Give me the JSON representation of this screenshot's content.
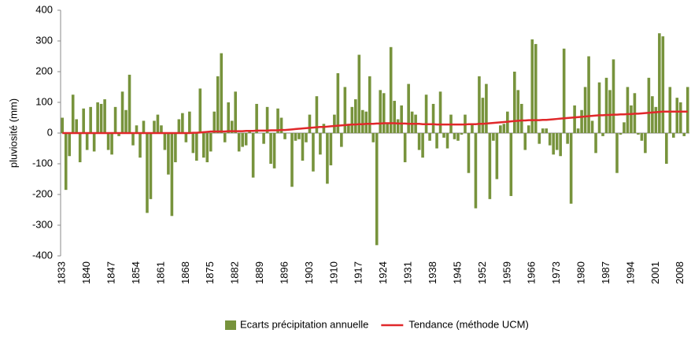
{
  "chart_data": {
    "type": "bar",
    "y_label": "pluviosité (mm)",
    "categories": [
      "1833",
      null,
      null,
      null,
      null,
      null,
      null,
      "1840",
      null,
      null,
      null,
      null,
      null,
      null,
      "1847",
      null,
      null,
      null,
      null,
      null,
      null,
      "1854",
      null,
      null,
      null,
      null,
      null,
      null,
      "1861",
      null,
      null,
      null,
      null,
      null,
      null,
      "1868",
      null,
      null,
      null,
      null,
      null,
      null,
      "1875",
      null,
      null,
      null,
      null,
      null,
      null,
      "1882",
      null,
      null,
      null,
      null,
      null,
      null,
      "1889",
      null,
      null,
      null,
      null,
      null,
      null,
      "1896",
      null,
      null,
      null,
      null,
      null,
      null,
      "1903",
      null,
      null,
      null,
      null,
      null,
      null,
      "1910",
      null,
      null,
      null,
      null,
      null,
      null,
      "1917",
      null,
      null,
      null,
      null,
      null,
      null,
      "1924",
      null,
      null,
      null,
      null,
      null,
      null,
      "1931",
      null,
      null,
      null,
      null,
      null,
      null,
      "1938",
      null,
      null,
      null,
      null,
      null,
      null,
      "1945",
      null,
      null,
      null,
      null,
      null,
      null,
      "1952",
      null,
      null,
      null,
      null,
      null,
      null,
      "1959",
      null,
      null,
      null,
      null,
      null,
      null,
      "1966",
      null,
      null,
      null,
      null,
      null,
      null,
      "1973",
      null,
      null,
      null,
      null,
      null,
      null,
      "1980",
      null,
      null,
      null,
      null,
      null,
      null,
      "1987",
      null,
      null,
      null,
      null,
      null,
      null,
      "1994",
      null,
      null,
      null,
      null,
      null,
      null,
      "2001",
      null,
      null,
      null,
      null,
      null,
      null,
      "2008",
      null,
      null
    ],
    "series": [
      {
        "name": "Ecarts précipitation annuelle",
        "type": "bar",
        "color": "#77933c",
        "values": [
          50,
          -185,
          -75,
          125,
          45,
          -95,
          80,
          -55,
          85,
          -60,
          100,
          95,
          110,
          -55,
          -70,
          85,
          -10,
          135,
          75,
          190,
          -40,
          25,
          -80,
          40,
          -260,
          -215,
          40,
          60,
          25,
          -55,
          -135,
          -270,
          -95,
          45,
          65,
          -30,
          70,
          -65,
          -90,
          145,
          -80,
          -95,
          -60,
          70,
          185,
          260,
          -30,
          100,
          40,
          135,
          -60,
          -45,
          -40,
          10,
          -145,
          95,
          0,
          -35,
          85,
          -100,
          -115,
          80,
          50,
          -20,
          0,
          -175,
          -25,
          -20,
          -90,
          -30,
          60,
          -125,
          120,
          -70,
          30,
          -165,
          -105,
          60,
          195,
          -45,
          150,
          30,
          85,
          110,
          255,
          75,
          70,
          185,
          -30,
          -365,
          140,
          130,
          30,
          280,
          105,
          45,
          90,
          -95,
          160,
          70,
          60,
          -55,
          -80,
          125,
          -25,
          95,
          -50,
          135,
          -15,
          -50,
          60,
          -20,
          -25,
          -5,
          60,
          -130,
          30,
          -245,
          185,
          115,
          160,
          -215,
          -25,
          -150,
          25,
          30,
          70,
          -205,
          200,
          140,
          95,
          -55,
          25,
          305,
          290,
          -35,
          15,
          15,
          -40,
          -70,
          -55,
          -75,
          275,
          -35,
          -230,
          90,
          15,
          75,
          150,
          250,
          40,
          -65,
          165,
          -10,
          180,
          140,
          240,
          -130,
          -5,
          35,
          150,
          90,
          130,
          -5,
          -25,
          -65,
          180,
          120,
          85,
          325,
          315,
          -100,
          150,
          -15,
          115,
          100,
          -10,
          150
        ]
      },
      {
        "name": "Tendance (méthode UCM)",
        "type": "line",
        "color": "#e0282a",
        "values": [
          0,
          0,
          0,
          0,
          0,
          0,
          0,
          0,
          0,
          0,
          0,
          0,
          0,
          0,
          0,
          0,
          0,
          0,
          0,
          0,
          0,
          0,
          0,
          0,
          0,
          0,
          0,
          0,
          0,
          0,
          0,
          0,
          0,
          0,
          0,
          0,
          0,
          1,
          1,
          2,
          3,
          4,
          5,
          5,
          5,
          5,
          5,
          6,
          6,
          6,
          6,
          6,
          7,
          7,
          7,
          8,
          8,
          8,
          8,
          9,
          9,
          9,
          10,
          10,
          11,
          12,
          13,
          14,
          15,
          16,
          17,
          18,
          19,
          20,
          20,
          21,
          22,
          23,
          24,
          25,
          26,
          27,
          28,
          28,
          29,
          29,
          30,
          30,
          30,
          31,
          31,
          32,
          32,
          32,
          32,
          31,
          31,
          31,
          30,
          30,
          30,
          30,
          29,
          29,
          29,
          29,
          28,
          28,
          28,
          28,
          28,
          28,
          28,
          28,
          28,
          29,
          29,
          29,
          30,
          30,
          31,
          32,
          33,
          34,
          35,
          36,
          37,
          38,
          39,
          40,
          41,
          41,
          42,
          42,
          42,
          42,
          43,
          43,
          44,
          45,
          46,
          47,
          48,
          49,
          50,
          51,
          52,
          53,
          54,
          55,
          56,
          57,
          58,
          58,
          59,
          59,
          60,
          60,
          61,
          61,
          62,
          62,
          63,
          63,
          64,
          65,
          66,
          67,
          68,
          69,
          70,
          70,
          70,
          70,
          70,
          70,
          70,
          70
        ]
      }
    ],
    "ylim": [
      -400,
      400
    ],
    "yticks": [
      -400,
      -300,
      -200,
      -100,
      0,
      100,
      200,
      300,
      400
    ],
    "grid": false,
    "legend": "bottom"
  }
}
